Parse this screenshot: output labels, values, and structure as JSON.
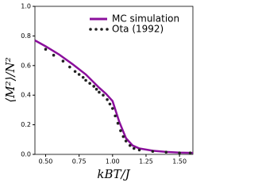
{
  "chart_data": {
    "type": "line",
    "x_label": "kBT/J",
    "y_label": "⟨M²⟩/N²",
    "xlim": [
      0.42,
      1.6
    ],
    "ylim": [
      0,
      1.0
    ],
    "xticks": [
      {
        "value": 0.5,
        "label": "0.50"
      },
      {
        "value": 0.75,
        "label": "0.75"
      },
      {
        "value": 1.0,
        "label": "1.00"
      },
      {
        "value": 1.25,
        "label": "1.25"
      },
      {
        "value": 1.5,
        "label": "1.50"
      }
    ],
    "yticks": [
      {
        "value": 0,
        "label": "0.0"
      },
      0.2,
      0.4,
      0.6,
      0.8,
      {
        "value": 1.0,
        "label": "1.0"
      }
    ],
    "legend": "upper right",
    "series": [
      {
        "name": "MC simulation",
        "color": "#8b0f9c",
        "style": "line",
        "x": [
          0.42,
          0.5,
          0.6,
          0.7,
          0.8,
          0.9,
          0.95,
          1.0,
          1.05,
          1.1,
          1.15,
          1.2,
          1.3,
          1.4,
          1.5,
          1.6
        ],
        "values": [
          0.77,
          0.73,
          0.675,
          0.61,
          0.54,
          0.45,
          0.41,
          0.36,
          0.22,
          0.11,
          0.06,
          0.04,
          0.025,
          0.017,
          0.012,
          0.01
        ]
      },
      {
        "name": "Ota (1992)",
        "color": "#222222",
        "style": "scatter",
        "x": [
          0.5,
          0.56,
          0.63,
          0.68,
          0.72,
          0.75,
          0.78,
          0.8,
          0.83,
          0.86,
          0.88,
          0.9,
          0.93,
          0.96,
          0.98,
          1.0,
          1.02,
          1.04,
          1.06,
          1.08,
          1.1,
          1.13,
          1.16,
          1.2,
          1.3,
          1.4,
          1.5,
          1.58
        ],
        "values": [
          0.71,
          0.67,
          0.63,
          0.59,
          0.56,
          0.54,
          0.52,
          0.5,
          0.48,
          0.46,
          0.44,
          0.42,
          0.4,
          0.37,
          0.34,
          0.31,
          0.26,
          0.21,
          0.16,
          0.12,
          0.09,
          0.06,
          0.04,
          0.03,
          0.02,
          0.015,
          0.01,
          0.01
        ]
      }
    ]
  }
}
